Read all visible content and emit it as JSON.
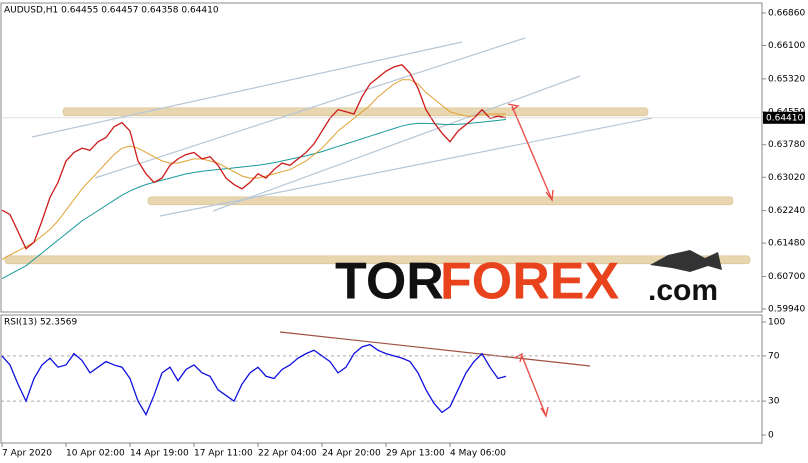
{
  "chart_data": [
    {
      "type": "line",
      "title": "AUDUSD,H1  0.64455 0.64457 0.64358 0.64410",
      "last_price": "0.64410",
      "x": [
        "7 Apr 2020",
        null,
        null,
        null,
        null,
        null,
        null,
        null,
        "10 Apr 02:00",
        null,
        null,
        null,
        null,
        null,
        null,
        null,
        "14 Apr 19:00",
        null,
        null,
        null,
        null,
        null,
        null,
        null,
        "17 Apr 11:00",
        null,
        null,
        null,
        null,
        null,
        null,
        null,
        "22 Apr 04:00",
        null,
        null,
        null,
        null,
        null,
        null,
        null,
        "24 Apr 20:00",
        null,
        null,
        null,
        null,
        null,
        null,
        null,
        "29 Apr 13:00",
        null,
        null,
        null,
        null,
        null,
        null,
        null,
        "4 May 06:00",
        null,
        null,
        null,
        null,
        null,
        null,
        null
      ],
      "series": [
        {
          "color": "#cc1a1a",
          "values": [
            0.6225,
            0.6215,
            0.6175,
            0.6135,
            0.615,
            0.62,
            0.6255,
            0.629,
            0.634,
            0.636,
            0.637,
            0.6365,
            0.6385,
            0.6395,
            0.642,
            0.643,
            0.641,
            0.634,
            0.631,
            0.629,
            0.63,
            0.633,
            0.6345,
            0.6355,
            0.636,
            0.6345,
            0.635,
            0.633,
            0.63,
            0.6285,
            0.6275,
            0.629,
            0.631,
            0.63,
            0.632,
            0.6335,
            0.633,
            0.6345,
            0.636,
            0.638,
            0.641,
            0.644,
            0.646,
            0.6455,
            0.645,
            0.649,
            0.652,
            0.6535,
            0.655,
            0.656,
            0.6565,
            0.6545,
            0.651,
            0.646,
            0.643,
            0.6405,
            0.6385,
            0.641,
            0.6425,
            0.644,
            0.646,
            0.644,
            0.6445,
            0.6441
          ]
        },
        {
          "color": "#e0a030",
          "values": [
            0.611,
            0.612,
            0.613,
            0.614,
            0.615,
            0.6165,
            0.618,
            0.62,
            0.6225,
            0.625,
            0.6275,
            0.6295,
            0.6315,
            0.6335,
            0.6355,
            0.637,
            0.6375,
            0.637,
            0.636,
            0.635,
            0.634,
            0.6335,
            0.6335,
            0.634,
            0.6345,
            0.6345,
            0.634,
            0.6335,
            0.6325,
            0.6315,
            0.6305,
            0.63,
            0.63,
            0.6305,
            0.631,
            0.6315,
            0.632,
            0.633,
            0.634,
            0.6355,
            0.637,
            0.639,
            0.641,
            0.6425,
            0.644,
            0.6455,
            0.647,
            0.649,
            0.6505,
            0.652,
            0.653,
            0.653,
            0.652,
            0.65,
            0.6485,
            0.647,
            0.6455,
            0.645,
            0.6445,
            0.6445,
            0.645,
            0.645,
            0.645,
            0.645
          ]
        },
        {
          "color": "#1a9a9a",
          "values": [
            0.6065,
            0.6075,
            0.6085,
            0.6095,
            0.611,
            0.6125,
            0.614,
            0.6155,
            0.617,
            0.6185,
            0.62,
            0.6212,
            0.6224,
            0.6236,
            0.6248,
            0.626,
            0.627,
            0.6278,
            0.6285,
            0.629,
            0.6295,
            0.63,
            0.6305,
            0.631,
            0.6313,
            0.6316,
            0.6318,
            0.632,
            0.6322,
            0.6324,
            0.6326,
            0.6328,
            0.633,
            0.6333,
            0.6336,
            0.634,
            0.6344,
            0.6348,
            0.6352,
            0.6357,
            0.6362,
            0.6368,
            0.6374,
            0.638,
            0.6386,
            0.6392,
            0.6398,
            0.6404,
            0.641,
            0.6416,
            0.6422,
            0.6426,
            0.6428,
            0.6428,
            0.6427,
            0.6426,
            0.6425,
            0.6426,
            0.6427,
            0.6429,
            0.6431,
            0.6433,
            0.6435,
            0.6437
          ]
        }
      ],
      "levels": [
        0.6455,
        0.6247,
        0.6109
      ],
      "level_color": "#e8d6b0",
      "ylim": [
        0.5994,
        0.6686
      ],
      "yticks": [
        {
          "value": 0.6686,
          "label": "0.66860"
        },
        {
          "value": 0.661,
          "label": "0.66100"
        },
        {
          "value": 0.6532,
          "label": "0.65320"
        },
        {
          "value": 0.6455,
          "label": "0.64550"
        },
        {
          "value": 0.6378,
          "label": "0.63780"
        },
        {
          "value": 0.6302,
          "label": "0.63020"
        },
        {
          "value": 0.6224,
          "label": "0.62240"
        },
        {
          "value": 0.6148,
          "label": "0.61480"
        },
        {
          "value": 0.607,
          "label": "0.60700"
        },
        {
          "value": 0.5994,
          "label": "0.59940"
        }
      ],
      "watermark": [
        "TOR",
        "FOREX",
        ".com"
      ]
    },
    {
      "type": "line",
      "title": "RSI(13) 52.3569",
      "series": [
        {
          "color": "#1010e0",
          "values": [
            70,
            62,
            45,
            30,
            50,
            62,
            68,
            60,
            62,
            72,
            66,
            55,
            60,
            65,
            62,
            60,
            50,
            30,
            18,
            35,
            55,
            60,
            48,
            58,
            62,
            55,
            52,
            40,
            35,
            30,
            45,
            55,
            60,
            52,
            50,
            58,
            62,
            68,
            72,
            75,
            70,
            65,
            55,
            60,
            72,
            78,
            80,
            75,
            72,
            70,
            68,
            65,
            55,
            40,
            28,
            20,
            25,
            40,
            55,
            65,
            72,
            60,
            50,
            52
          ]
        }
      ],
      "ylim": [
        0,
        100
      ],
      "yticks": [
        0,
        30,
        70,
        100
      ]
    }
  ]
}
